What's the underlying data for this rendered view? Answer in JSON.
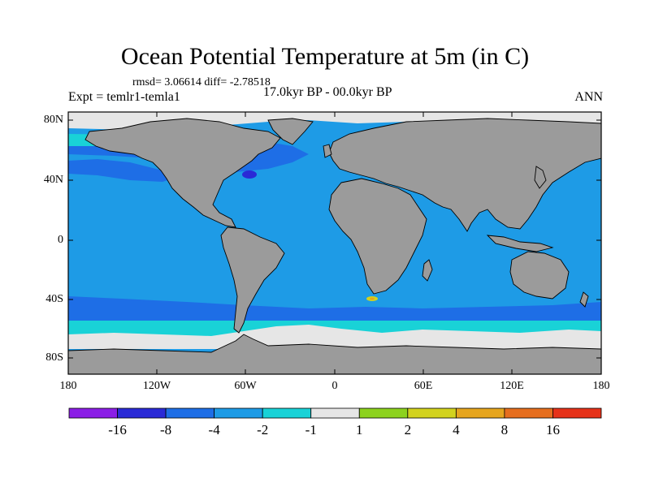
{
  "title": "Ocean Potential Temperature at 5m (in C)",
  "stats": "rmsd= 3.06614 diff= -2.78518",
  "experiment": "Expt = temlr1-temla1",
  "period": "17.0kyr BP - 00.0kyr BP",
  "season": "ANN",
  "lat_labels": [
    "80N",
    "40N",
    "0",
    "40S",
    "80S"
  ],
  "lon_labels": [
    "180",
    "120W",
    "60W",
    "0",
    "60E",
    "120E",
    "180"
  ],
  "colorbar": {
    "levels": [
      "-16",
      "-8",
      "-4",
      "-2",
      "-1",
      "1",
      "2",
      "4",
      "8",
      "16"
    ],
    "colors": [
      "#8b1ee6",
      "#2a2ad6",
      "#1e6ee6",
      "#1e9be6",
      "#19d2d7",
      "#e6e6e6",
      "#8cd21e",
      "#d2d21e",
      "#e6a51e",
      "#e66e1e",
      "#e63219"
    ]
  },
  "colors": {
    "land": "#9b9b9b",
    "ocean_main": "#1e9be6",
    "ocean_cold": "#1e6ee6",
    "ocean_strong": "#2a2ad6",
    "ocean_light": "#19d2d7",
    "neutral": "#e6e6e6"
  }
}
